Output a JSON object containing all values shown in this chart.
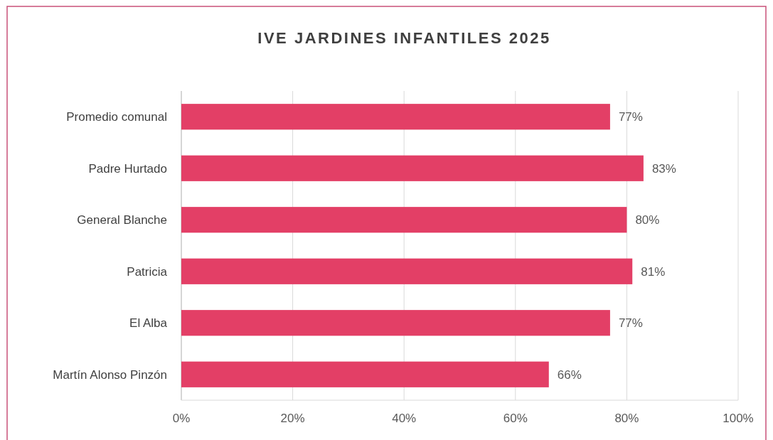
{
  "chart_data": {
    "type": "bar",
    "orientation": "horizontal",
    "title": "IVE JARDINES INFANTILES 2025",
    "categories": [
      "Promedio comunal",
      "Padre Hurtado",
      "General Blanche",
      "Patricia",
      "El Alba",
      "Martín Alonso Pinzón"
    ],
    "values": [
      77,
      83,
      80,
      81,
      77,
      66
    ],
    "value_labels": [
      "77%",
      "83%",
      "80%",
      "81%",
      "77%",
      "66%"
    ],
    "color": "#e33f66",
    "xlim": [
      0,
      100
    ],
    "xticks": [
      {
        "value": 0,
        "label": "0%"
      },
      {
        "value": 20,
        "label": "20%"
      },
      {
        "value": 40,
        "label": "40%"
      },
      {
        "value": 60,
        "label": "60%"
      },
      {
        "value": 80,
        "label": "80%"
      },
      {
        "value": 100,
        "label": "100%"
      }
    ],
    "grid": "x"
  }
}
